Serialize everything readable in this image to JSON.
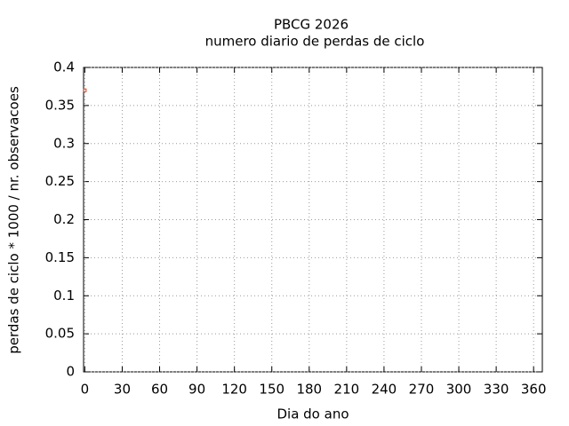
{
  "chart_data": {
    "type": "scatter",
    "title": "PBCG 2026",
    "subtitle": "numero diario de perdas de ciclo",
    "xlabel": "Dia do ano",
    "ylabel": "perdas de ciclo * 1000 / nr. observacoes",
    "series": [
      {
        "color": "#e0401a",
        "x": [
          0
        ],
        "values": [
          0.37
        ]
      }
    ],
    "xlim": [
      -1,
      367
    ],
    "ylim": [
      0,
      0.4
    ],
    "xticks": [
      0,
      30,
      60,
      90,
      120,
      150,
      180,
      210,
      240,
      270,
      300,
      330,
      360
    ],
    "yticks": [
      0,
      0.05,
      0.1,
      0.15,
      0.2,
      0.25,
      0.3,
      0.35,
      0.4
    ],
    "grid": true
  }
}
